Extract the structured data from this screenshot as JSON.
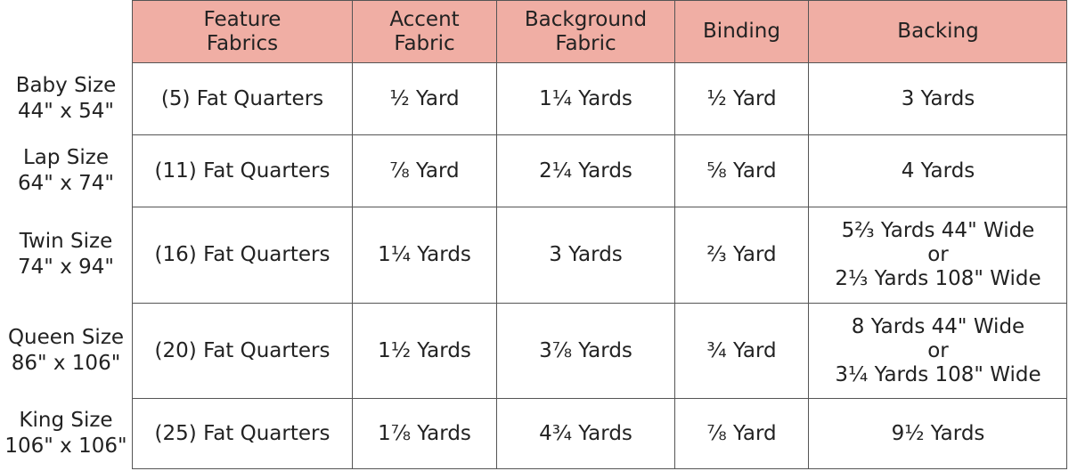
{
  "table": {
    "columns": [
      [
        "Feature",
        "Fabrics"
      ],
      [
        "Accent",
        "Fabric"
      ],
      [
        "Background",
        "Fabric"
      ],
      [
        "Binding"
      ],
      [
        "Backing"
      ]
    ],
    "rows": [
      {
        "label": [
          "Baby Size",
          "44\" x 54\""
        ],
        "cells": [
          [
            "(5) Fat Quarters"
          ],
          [
            "½ Yard"
          ],
          [
            "1¼ Yards"
          ],
          [
            "½ Yard"
          ],
          [
            "3 Yards"
          ]
        ]
      },
      {
        "label": [
          "Lap Size",
          "64\" x 74\""
        ],
        "cells": [
          [
            "(11) Fat Quarters"
          ],
          [
            "⅞ Yard"
          ],
          [
            "2¼ Yards"
          ],
          [
            "⅝ Yard"
          ],
          [
            "4 Yards"
          ]
        ]
      },
      {
        "label": [
          "Twin Size",
          "74\" x 94\""
        ],
        "cells": [
          [
            "(16) Fat Quarters"
          ],
          [
            "1¼ Yards"
          ],
          [
            "3 Yards"
          ],
          [
            "⅔ Yard"
          ],
          [
            "5⅔ Yards 44\" Wide",
            "or",
            "2⅓ Yards 108\" Wide"
          ]
        ]
      },
      {
        "label": [
          "Queen Size",
          "86\" x 106\""
        ],
        "cells": [
          [
            "(20) Fat Quarters"
          ],
          [
            "1½ Yards"
          ],
          [
            "3⅞ Yards"
          ],
          [
            "¾ Yard"
          ],
          [
            "8 Yards 44\" Wide",
            "or",
            "3¼ Yards 108\" Wide"
          ]
        ]
      },
      {
        "label": [
          "King Size",
          "106\" x 106\""
        ],
        "cells": [
          [
            "(25) Fat Quarters"
          ],
          [
            "1⅞ Yards"
          ],
          [
            "4¾ Yards"
          ],
          [
            "⅞ Yard"
          ],
          [
            "9½ Yards"
          ]
        ]
      }
    ]
  }
}
